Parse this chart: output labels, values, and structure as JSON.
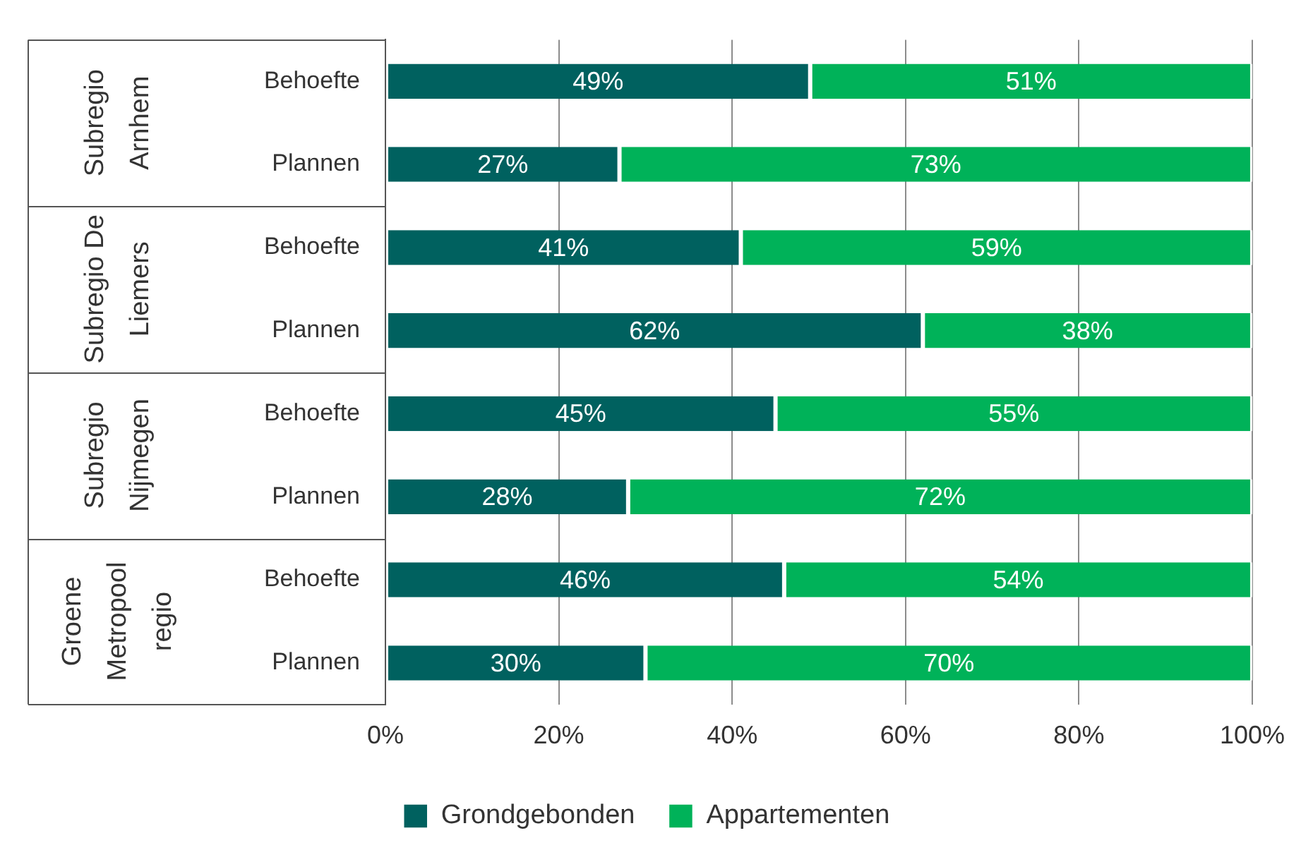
{
  "chart_data": {
    "type": "bar",
    "orientation": "horizontal",
    "stacked": true,
    "categories": [
      "Behoefte",
      "Plannen",
      "Behoefte",
      "Plannen",
      "Behoefte",
      "Plannen",
      "Behoefte",
      "Plannen"
    ],
    "series": [
      {
        "name": "Grondgebonden",
        "color": "#00615f",
        "values": [
          49,
          27,
          41,
          62,
          45,
          28,
          46,
          30
        ],
        "value_labels": [
          "49%",
          "27%",
          "41%",
          "62%",
          "45%",
          "28%",
          "46%",
          "30%"
        ]
      },
      {
        "name": "Appartementen",
        "color": "#00b259",
        "values": [
          51,
          73,
          59,
          38,
          55,
          72,
          54,
          70
        ],
        "value_labels": [
          "51%",
          "73%",
          "59%",
          "38%",
          "55%",
          "72%",
          "54%",
          "70%"
        ]
      }
    ],
    "xlim": [
      0,
      100
    ],
    "xticks": [
      {
        "value": 0,
        "label": "0%"
      },
      {
        "value": 20,
        "label": "20%"
      },
      {
        "value": 40,
        "label": "40%"
      },
      {
        "value": 60,
        "label": "60%"
      },
      {
        "value": 80,
        "label": "80%"
      },
      {
        "value": 100,
        "label": "100%"
      }
    ],
    "grid": "x",
    "legend": "bottom",
    "annotations": [
      "Subregio Arnhem",
      "Subregio De Liemers",
      "Subregio Nijmegen",
      "Groene Metropool regio"
    ]
  }
}
